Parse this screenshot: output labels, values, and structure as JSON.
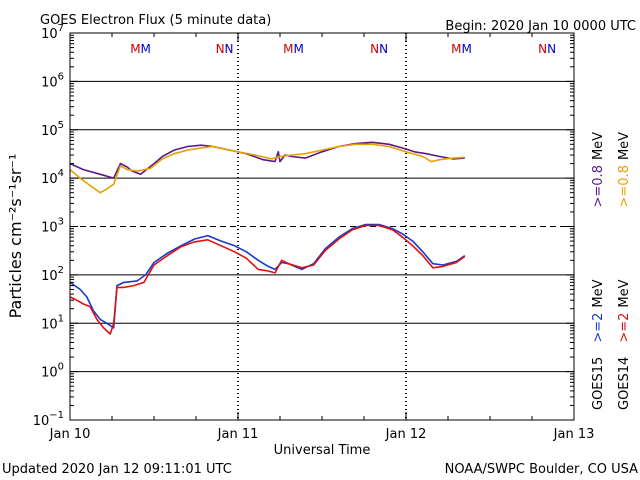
{
  "chart_data": {
    "type": "line",
    "title": "GOES Electron Flux (5 minute data)",
    "begin_label": "Begin: 2020 Jan 10 0000 UTC",
    "xlabel": "Universal Time",
    "ylabel": "Particles cm⁻²s⁻¹sr⁻¹",
    "footer_left": "Updated 2020 Jan 12 09:11:01 UTC",
    "footer_right": "NOAA/SWPC Boulder, CO USA",
    "x_range_days": [
      0,
      3
    ],
    "x_ticks": [
      {
        "day": 0,
        "label": "Jan 10"
      },
      {
        "day": 1,
        "label": "Jan 11"
      },
      {
        "day": 2,
        "label": "Jan 12"
      },
      {
        "day": 3,
        "label": "Jan 13"
      }
    ],
    "y_scale": "log",
    "y_range_log10": [
      -1,
      7
    ],
    "y_ticks": [
      {
        "exp": 7,
        "base": "10",
        "sup": "7"
      },
      {
        "exp": 6,
        "base": "10",
        "sup": "6"
      },
      {
        "exp": 5,
        "base": "10",
        "sup": "5"
      },
      {
        "exp": 4,
        "base": "10",
        "sup": "4"
      },
      {
        "exp": 3,
        "base": "10",
        "sup": "3"
      },
      {
        "exp": 2,
        "base": "10",
        "sup": "2"
      },
      {
        "exp": 1,
        "base": "10",
        "sup": "1"
      },
      {
        "exp": 0,
        "base": "10",
        "sup": "0"
      },
      {
        "exp": -1,
        "base": "10",
        "sup": "−1"
      }
    ],
    "solid_lines_log10": [
      6,
      5,
      4,
      2,
      1,
      0
    ],
    "dashed_lines_log10": [
      3
    ],
    "day_dividers": [
      1,
      2
    ],
    "markers": [
      {
        "day": 0.42,
        "text": "MM",
        "color": "#cc0000"
      },
      {
        "day": 0.92,
        "text": "NN",
        "color": "#cc0000"
      },
      {
        "day": 1.33,
        "text": "MM",
        "color": "#cc0000"
      },
      {
        "day": 1.84,
        "text": "NN",
        "color": "#cc0000"
      },
      {
        "day": 2.33,
        "text": "MM",
        "color": "#cc0000"
      },
      {
        "day": 2.84,
        "text": "NN",
        "color": "#cc0000"
      }
    ],
    "marker_second_color": "#0000cc",
    "legend": {
      "goes15": "GOES15",
      "goes14": "GOES14",
      "ge2_g15": ">=2",
      "ge2_g14": ">=2",
      "ge08_g15": ">=0.8",
      "ge08_g14": ">=0.8",
      "mev_1": "MeV",
      "mev_2": "MeV",
      "mev_3": "MeV",
      "mev_4": "MeV"
    },
    "series": [
      {
        "name": "GOES15 >=0.8 MeV",
        "color": "#5a1a8a",
        "x": [
          0,
          0.08,
          0.18,
          0.26,
          0.3,
          0.34,
          0.37,
          0.42,
          0.5,
          0.55,
          0.62,
          0.7,
          0.78,
          0.85,
          0.95,
          1.05,
          1.15,
          1.22,
          1.24,
          1.25,
          1.28,
          1.32,
          1.4,
          1.5,
          1.6,
          1.7,
          1.8,
          1.9,
          2.0,
          2.05,
          2.12,
          2.2,
          2.28,
          2.35
        ],
        "values": [
          20000,
          15000,
          12000,
          10000,
          20000,
          17000,
          14000,
          12000,
          20000,
          28000,
          38000,
          45000,
          48000,
          45000,
          38000,
          32000,
          24000,
          22000,
          35000,
          22000,
          30000,
          28000,
          26000,
          35000,
          45000,
          52000,
          55000,
          50000,
          40000,
          35000,
          32000,
          28000,
          25000,
          26000
        ]
      },
      {
        "name": "GOES14 >=0.8 MeV",
        "color": "#e8a000",
        "x": [
          0,
          0.06,
          0.12,
          0.18,
          0.22,
          0.26,
          0.3,
          0.34,
          0.4,
          0.48,
          0.55,
          0.62,
          0.7,
          0.78,
          0.85,
          0.92,
          1.0,
          1.1,
          1.2,
          1.25,
          1.32,
          1.4,
          1.5,
          1.6,
          1.7,
          1.8,
          1.9,
          2.0,
          2.1,
          2.15,
          2.2,
          2.28,
          2.35
        ],
        "values": [
          15000,
          10000,
          7000,
          5000,
          6000,
          7500,
          18000,
          15000,
          14000,
          16000,
          25000,
          32000,
          38000,
          42000,
          45000,
          40000,
          35000,
          30000,
          25000,
          28000,
          30000,
          32000,
          38000,
          45000,
          50000,
          50000,
          45000,
          35000,
          28000,
          22000,
          24000,
          26000,
          27000
        ]
      },
      {
        "name": "GOES15 >=2 MeV",
        "color": "#1a3acc",
        "x": [
          0,
          0.06,
          0.1,
          0.14,
          0.18,
          0.22,
          0.26,
          0.28,
          0.32,
          0.4,
          0.45,
          0.5,
          0.58,
          0.66,
          0.74,
          0.82,
          0.9,
          0.98,
          1.05,
          1.12,
          1.18,
          1.22,
          1.26,
          1.3,
          1.38,
          1.45,
          1.52,
          1.6,
          1.68,
          1.76,
          1.84,
          1.92,
          1.98,
          2.04,
          2.1,
          2.16,
          2.22,
          2.3,
          2.35
        ],
        "values": [
          70,
          50,
          35,
          18,
          12,
          10,
          8,
          60,
          70,
          75,
          100,
          180,
          280,
          400,
          550,
          650,
          500,
          400,
          300,
          200,
          150,
          130,
          180,
          170,
          130,
          170,
          350,
          600,
          900,
          1100,
          1100,
          900,
          700,
          500,
          300,
          170,
          160,
          190,
          250
        ]
      },
      {
        "name": "GOES14 >=2 MeV",
        "color": "#dd1111",
        "x": [
          0,
          0.04,
          0.08,
          0.12,
          0.16,
          0.2,
          0.24,
          0.26,
          0.28,
          0.32,
          0.38,
          0.44,
          0.5,
          0.58,
          0.66,
          0.74,
          0.82,
          0.9,
          0.98,
          1.05,
          1.12,
          1.18,
          1.22,
          1.26,
          1.3,
          1.38,
          1.45,
          1.52,
          1.6,
          1.68,
          1.76,
          1.84,
          1.92,
          1.98,
          2.04,
          2.1,
          2.16,
          2.22,
          2.3,
          2.35
        ],
        "values": [
          35,
          30,
          25,
          22,
          12,
          8,
          6,
          10,
          55,
          55,
          60,
          70,
          160,
          250,
          380,
          480,
          530,
          400,
          300,
          220,
          130,
          120,
          110,
          200,
          170,
          140,
          160,
          320,
          550,
          850,
          1050,
          1050,
          850,
          600,
          400,
          250,
          140,
          150,
          180,
          240
        ]
      }
    ]
  }
}
